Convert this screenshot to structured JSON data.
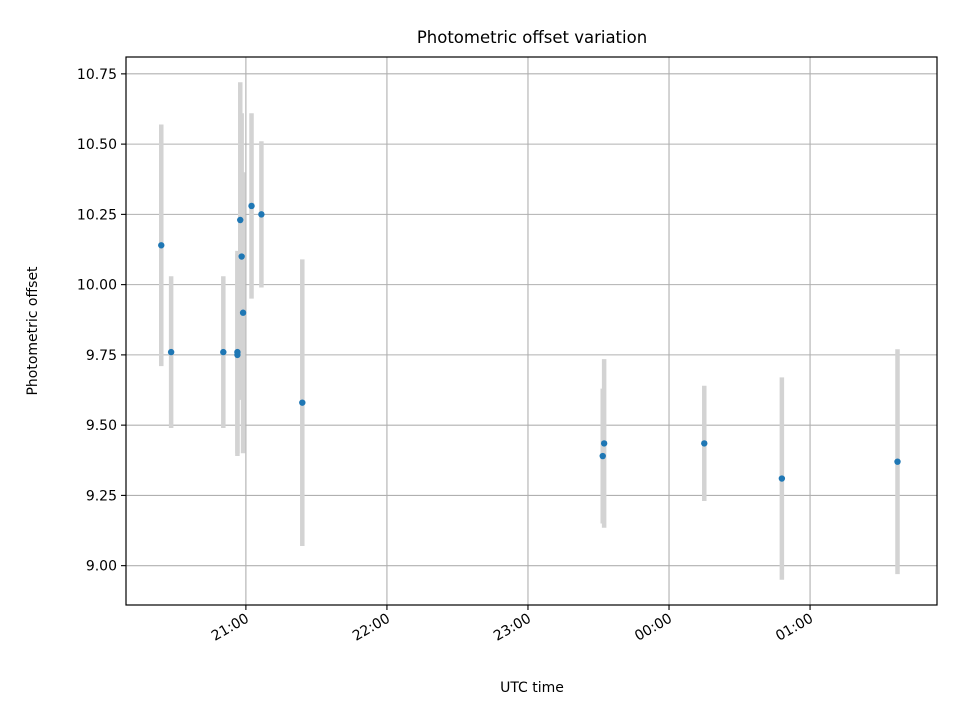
{
  "chart_data": {
    "type": "scatter",
    "title": "Photometric offset variation",
    "xlabel": "UTC time",
    "ylabel": "Photometric offset",
    "xlim_hours": [
      20.15,
      25.9
    ],
    "ylim": [
      8.86,
      10.81
    ],
    "xticks": [
      {
        "h": 21,
        "label": "21:00"
      },
      {
        "h": 22,
        "label": "22:00"
      },
      {
        "h": 23,
        "label": "23:00"
      },
      {
        "h": 24,
        "label": "00:00"
      },
      {
        "h": 25,
        "label": "01:00"
      }
    ],
    "yticks": [
      {
        "v": 9.0,
        "label": "9.00"
      },
      {
        "v": 9.25,
        "label": "9.25"
      },
      {
        "v": 9.5,
        "label": "9.50"
      },
      {
        "v": 9.75,
        "label": "9.75"
      },
      {
        "v": 10.0,
        "label": "10.00"
      },
      {
        "v": 10.25,
        "label": "10.25"
      },
      {
        "v": 10.5,
        "label": "10.50"
      },
      {
        "v": 10.75,
        "label": "10.75"
      }
    ],
    "grid": true,
    "colors": {
      "marker": "#1f77b4",
      "errorbar": "#d3d3d3"
    },
    "points": [
      {
        "t": "20:24",
        "h": 20.4,
        "y": 10.14,
        "err": 0.43
      },
      {
        "t": "20:28",
        "h": 20.47,
        "y": 9.76,
        "err": 0.27
      },
      {
        "t": "20:50",
        "h": 20.84,
        "y": 9.76,
        "err": 0.27
      },
      {
        "t": "20:56",
        "h": 20.94,
        "y": 9.76,
        "err": 0.36
      },
      {
        "t": "20:57",
        "h": 20.94,
        "y": 9.75,
        "err": 0.36
      },
      {
        "t": "20:57",
        "h": 20.96,
        "y": 10.23,
        "err": 0.49
      },
      {
        "t": "20:58",
        "h": 20.97,
        "y": 10.1,
        "err": 0.51
      },
      {
        "t": "20:59",
        "h": 20.98,
        "y": 9.9,
        "err": 0.5
      },
      {
        "t": "21:03",
        "h": 21.04,
        "y": 10.28,
        "err": 0.33
      },
      {
        "t": "21:07",
        "h": 21.11,
        "y": 10.25,
        "err": 0.26
      },
      {
        "t": "21:24",
        "h": 21.4,
        "y": 9.58,
        "err": 0.51
      },
      {
        "t": "23:32",
        "h": 23.53,
        "y": 9.39,
        "err": 0.24
      },
      {
        "t": "23:32",
        "h": 23.54,
        "y": 9.435,
        "err": 0.3
      },
      {
        "t": "00:15",
        "h": 24.25,
        "y": 9.435,
        "err": 0.205
      },
      {
        "t": "00:48",
        "h": 24.8,
        "y": 9.31,
        "err": 0.36
      },
      {
        "t": "01:37",
        "h": 25.62,
        "y": 9.37,
        "err": 0.4
      }
    ]
  }
}
